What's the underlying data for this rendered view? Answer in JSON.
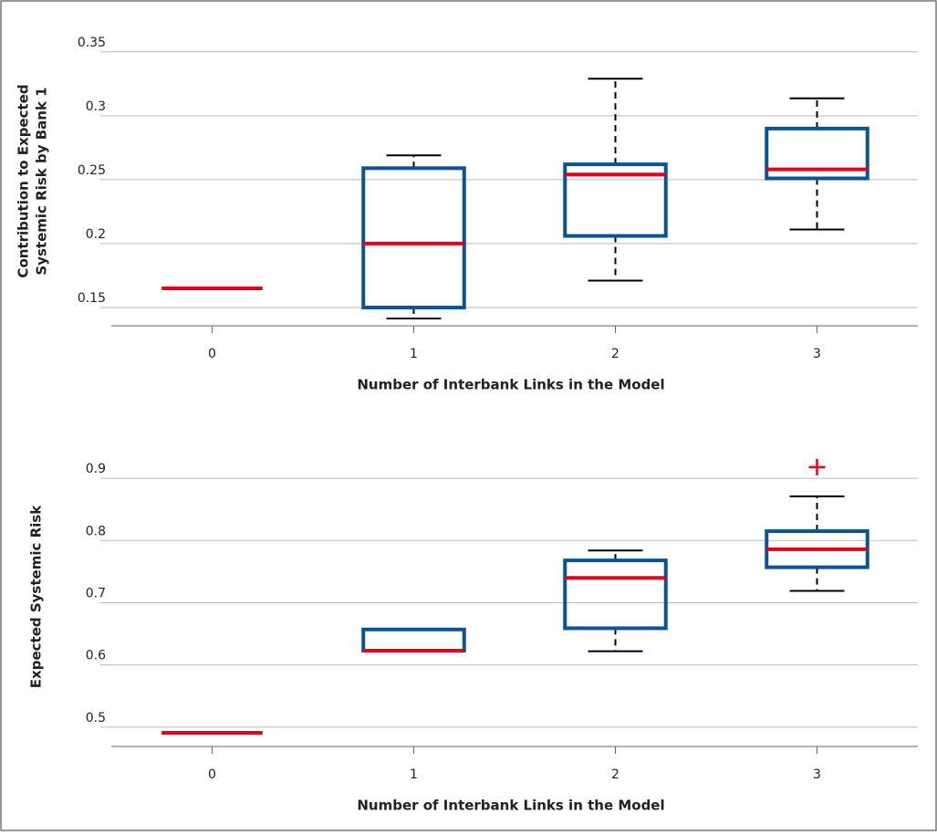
{
  "chart_data": [
    {
      "type": "box",
      "ylabel": [
        "Contribution to Expected",
        "Systemic Risk by Bank 1"
      ],
      "xlabel": "Number of Interbank Links in the Model",
      "categories": [
        "0",
        "1",
        "2",
        "3"
      ],
      "boxes": [
        {
          "whislo": 0.165,
          "q1": 0.165,
          "med": 0.165,
          "q3": 0.165,
          "whishi": 0.165,
          "fliers": []
        },
        {
          "whislo": 0.1414,
          "q1": 0.15,
          "med": 0.2,
          "q3": 0.259,
          "whishi": 0.269,
          "fliers": []
        },
        {
          "whislo": 0.171,
          "q1": 0.206,
          "med": 0.254,
          "q3": 0.262,
          "whishi": 0.329,
          "fliers": []
        },
        {
          "whislo": 0.211,
          "q1": 0.251,
          "med": 0.258,
          "q3": 0.29,
          "whishi": 0.3136,
          "fliers": []
        }
      ],
      "ylim": [
        0.1357,
        0.362
      ],
      "yticks": [
        0.15,
        0.2,
        0.25,
        0.3,
        0.35
      ],
      "grid": true,
      "box_color": "#0b5394",
      "median_color": "#e2001a",
      "whisker_color": "#000000"
    },
    {
      "type": "box",
      "ylabel": [
        "Expected Systemic Risk"
      ],
      "xlabel": "Number of Interbank Links in the Model",
      "categories": [
        "0",
        "1",
        "2",
        "3"
      ],
      "boxes": [
        {
          "whislo": 0.491,
          "q1": 0.491,
          "med": 0.491,
          "q3": 0.491,
          "whishi": 0.491,
          "fliers": []
        },
        {
          "whislo": 0.623,
          "q1": 0.623,
          "med": 0.623,
          "q3": 0.657,
          "whishi": 0.657,
          "fliers": []
        },
        {
          "whislo": 0.622,
          "q1": 0.659,
          "med": 0.74,
          "q3": 0.768,
          "whishi": 0.784,
          "fliers": []
        },
        {
          "whislo": 0.719,
          "q1": 0.757,
          "med": 0.786,
          "q3": 0.815,
          "whishi": 0.871,
          "fliers": [
            0.918
          ]
        }
      ],
      "ylim": [
        0.469,
        0.95
      ],
      "yticks": [
        0.5,
        0.6,
        0.7,
        0.8,
        0.9
      ],
      "grid": true,
      "box_color": "#0b5394",
      "median_color": "#e2001a",
      "whisker_color": "#000000"
    }
  ]
}
